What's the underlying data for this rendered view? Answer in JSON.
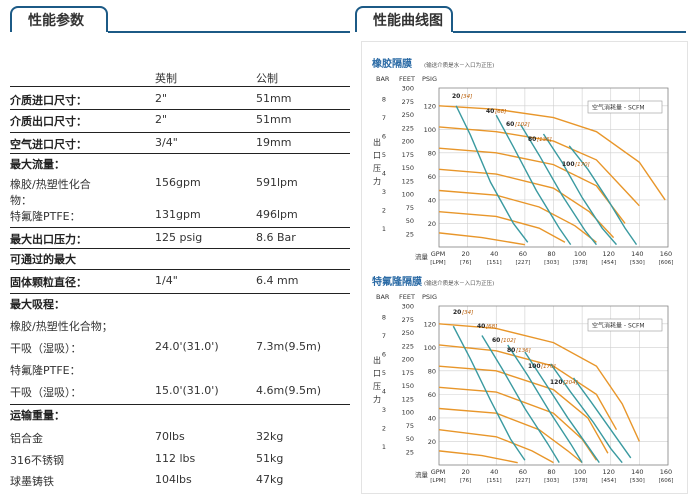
{
  "tabs": {
    "left": "性能参数",
    "right": "性能曲线图"
  },
  "specs": {
    "header": {
      "col1": "英制",
      "col2": "公制"
    },
    "rows": [
      {
        "label": "介质进口尺寸：",
        "imperial": "2\"",
        "metric": "51mm",
        "bold": true
      },
      {
        "label": "介质出口尺寸：",
        "imperial": "2\"",
        "metric": "51mm",
        "bold": true
      },
      {
        "label": "空气进口尺寸：",
        "imperial": "3/4\"",
        "metric": "19mm",
        "bold": true
      },
      {
        "label": "最大流量：",
        "imperial": "",
        "metric": "",
        "bold": true
      },
      {
        "label": "橡胶/热塑性化合",
        "imperial": "156gpm",
        "metric": "591lpm",
        "bold": false
      },
      {
        "label": "物：",
        "imperial": "",
        "metric": "",
        "bold": false
      },
      {
        "label": "特氟隆PTFE：",
        "imperial": "131gpm",
        "metric": "496lpm",
        "bold": false
      },
      {
        "label": "最大出口压力：",
        "imperial": "125 psig",
        "metric": "8.6 Bar",
        "bold": true
      },
      {
        "label": "可通过的最大",
        "imperial": "",
        "metric": "",
        "bold": true
      },
      {
        "label": "固体颗粒直径：",
        "imperial": "1/4\"",
        "metric": "6.4 mm",
        "bold": true
      },
      {
        "label": "最大吸程：",
        "imperial": "",
        "metric": "",
        "bold": true
      },
      {
        "label": "橡胶/热塑性化合物；",
        "imperial": "",
        "metric": "",
        "bold": false
      },
      {
        "label": "干吸（湿吸）：",
        "imperial": "24.0'(31.0')",
        "metric": "7.3m(9.5m)",
        "bold": false
      },
      {
        "label": "特氟隆PTFE：",
        "imperial": "",
        "metric": "",
        "bold": false
      },
      {
        "label": "干吸（湿吸）：",
        "imperial": "15.0'(31.0')",
        "metric": "4.6m(9.5m)",
        "bold": false
      },
      {
        "label": "运输重量：",
        "imperial": "",
        "metric": "",
        "bold": true
      },
      {
        "label": "铝合金",
        "imperial": "70lbs",
        "metric": "32kg",
        "bold": false
      },
      {
        "label": "316不锈钢",
        "imperial": "112 lbs",
        "metric": "51kg",
        "bold": false
      },
      {
        "label": "球墨铸铁",
        "imperial": "104lbs",
        "metric": "47kg",
        "bold": false
      }
    ]
  },
  "charts": {
    "common": {
      "bar_label": "BAR",
      "feet_label": "FEET",
      "psig_label": "PSIG",
      "ylabel": "出口压力",
      "flow_label": "流量",
      "gpm_label": "GPM",
      "lpm_label": "[LPM]",
      "legend": "空气消耗量 - SCFM",
      "bar_ticks": [
        "1",
        "2",
        "3",
        "4",
        "5",
        "6",
        "7",
        "8"
      ],
      "feet_ticks": [
        "25",
        "50",
        "75",
        "100",
        "125",
        "150",
        "175",
        "200",
        "225",
        "250",
        "275",
        "300"
      ],
      "psig_ticks": [
        "20",
        "40",
        "60",
        "80",
        "100",
        "120"
      ],
      "gpm_ticks": [
        "20",
        "40",
        "60",
        "80",
        "100",
        "120",
        "140",
        "160"
      ],
      "lpm_ticks": [
        "[76]",
        "[151]",
        "[227]",
        "[303]",
        "[378]",
        "[454]",
        "[530]",
        "[606]"
      ],
      "colors": {
        "pressure": "#e8962a",
        "air": "#3a9aa0",
        "title": "#2a6aa5"
      }
    },
    "rubber": {
      "title": "橡胶隔膜",
      "note": "(输送介质是水－入口为正压)",
      "air_labels": [
        {
          "value": "20",
          "bracket": "[34]"
        },
        {
          "value": "40",
          "bracket": "[68]"
        },
        {
          "value": "60",
          "bracket": "[102]"
        },
        {
          "value": "80",
          "bracket": "[136]"
        },
        {
          "value": "100",
          "bracket": "[170]"
        }
      ]
    },
    "ptfe": {
      "title": "特氟隆隔膜",
      "note": "(输送介质是水－入口为正压)",
      "air_labels": [
        {
          "value": "20",
          "bracket": "[34]"
        },
        {
          "value": "40",
          "bracket": "[68]"
        },
        {
          "value": "60",
          "bracket": "[102]"
        },
        {
          "value": "80",
          "bracket": "[136]"
        },
        {
          "value": "100",
          "bracket": "[170]"
        },
        {
          "value": "120",
          "bracket": "[204]"
        }
      ]
    }
  }
}
